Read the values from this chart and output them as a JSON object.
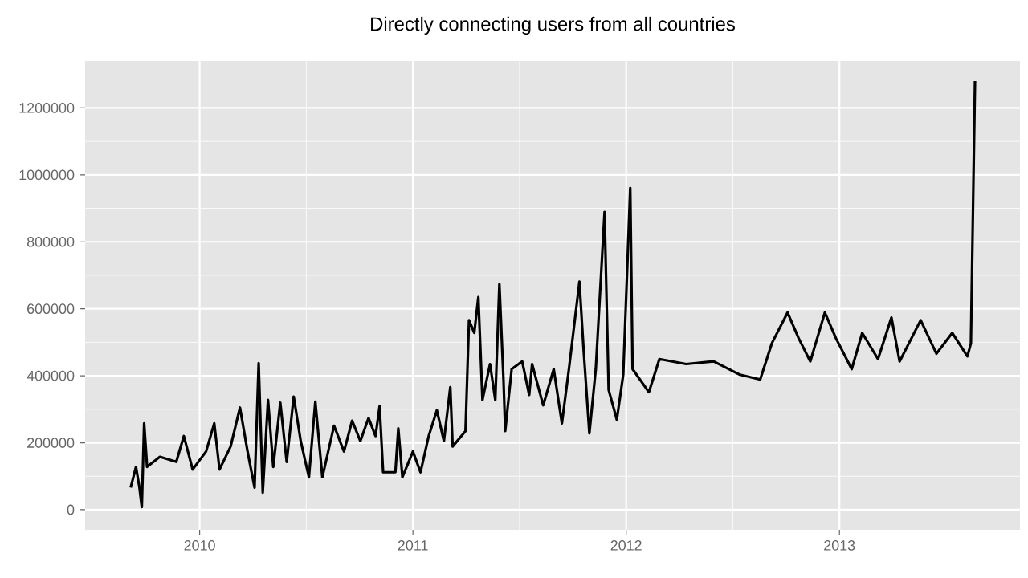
{
  "chart_data": {
    "type": "line",
    "title": "Directly connecting users from all countries",
    "x": [
      "2009-09-05",
      "2009-09-14",
      "2009-09-20",
      "2009-09-24",
      "2009-09-28",
      "2009-10-03",
      "2009-10-25",
      "2009-11-22",
      "2009-12-05",
      "2009-12-20",
      "2010-01-12",
      "2010-01-26",
      "2010-02-04",
      "2010-02-23",
      "2010-03-11",
      "2010-03-24",
      "2010-04-05",
      "2010-04-12",
      "2010-04-19",
      "2010-04-28",
      "2010-05-07",
      "2010-05-19",
      "2010-05-30",
      "2010-06-11",
      "2010-06-23",
      "2010-07-07",
      "2010-07-18",
      "2010-07-30",
      "2010-08-19",
      "2010-09-05",
      "2010-09-19",
      "2010-10-03",
      "2010-10-17",
      "2010-10-29",
      "2010-11-05",
      "2010-11-11",
      "2010-12-02",
      "2010-12-07",
      "2010-12-14",
      "2011-01-01",
      "2011-01-14",
      "2011-01-28",
      "2011-02-11",
      "2011-02-23",
      "2011-03-06",
      "2011-03-10",
      "2011-04-01",
      "2011-04-07",
      "2011-04-16",
      "2011-04-23",
      "2011-04-30",
      "2011-05-13",
      "2011-05-22",
      "2011-05-29",
      "2011-06-05",
      "2011-06-08",
      "2011-06-19",
      "2011-07-07",
      "2011-07-19",
      "2011-07-24",
      "2011-08-12",
      "2011-08-30",
      "2011-09-13",
      "2011-09-25",
      "2011-10-13",
      "2011-10-20",
      "2011-10-30",
      "2011-11-10",
      "2011-11-25",
      "2011-12-02",
      "2011-12-16",
      "2011-12-27",
      "2012-01-08",
      "2012-01-12",
      "2012-02-09",
      "2012-02-27",
      "2012-04-13",
      "2012-05-30",
      "2012-07-13",
      "2012-08-18",
      "2012-09-07",
      "2012-10-04",
      "2012-10-23",
      "2012-11-12",
      "2012-12-07",
      "2012-12-26",
      "2013-01-22",
      "2013-02-09",
      "2013-03-08",
      "2013-03-31",
      "2013-04-14",
      "2013-05-20",
      "2013-06-16",
      "2013-07-13",
      "2013-08-08",
      "2013-08-14",
      "2013-08-21"
    ],
    "values": [
      66000,
      128000,
      66000,
      8000,
      258000,
      128000,
      158000,
      143000,
      220000,
      120000,
      174000,
      258000,
      120000,
      189000,
      305000,
      174000,
      66000,
      438000,
      51000,
      328000,
      128000,
      320000,
      143000,
      338000,
      205000,
      97000,
      323000,
      97000,
      251000,
      174000,
      266000,
      205000,
      274000,
      220000,
      309000,
      112000,
      112000,
      243000,
      97000,
      174000,
      112000,
      220000,
      297000,
      205000,
      366000,
      189000,
      235000,
      566000,
      528000,
      635000,
      328000,
      435000,
      328000,
      674000,
      389000,
      235000,
      420000,
      443000,
      343000,
      435000,
      312000,
      420000,
      258000,
      420000,
      681000,
      481000,
      228000,
      420000,
      889000,
      358000,
      269000,
      404000,
      961000,
      420000,
      351000,
      450000,
      435000,
      443000,
      404000,
      389000,
      497000,
      589000,
      512000,
      443000,
      589000,
      512000,
      420000,
      528000,
      450000,
      574000,
      443000,
      566000,
      466000,
      528000,
      458000,
      497000,
      1280000
    ],
    "color": "#000000",
    "xlim": [
      "2009-06-19",
      "2013-11-06"
    ],
    "xticks": [
      "2010",
      "2011",
      "2012",
      "2013"
    ],
    "ylim": [
      -60000,
      1340000
    ],
    "yticks": [
      0,
      200000,
      400000,
      600000,
      800000,
      1000000,
      1200000
    ],
    "grid": true
  }
}
